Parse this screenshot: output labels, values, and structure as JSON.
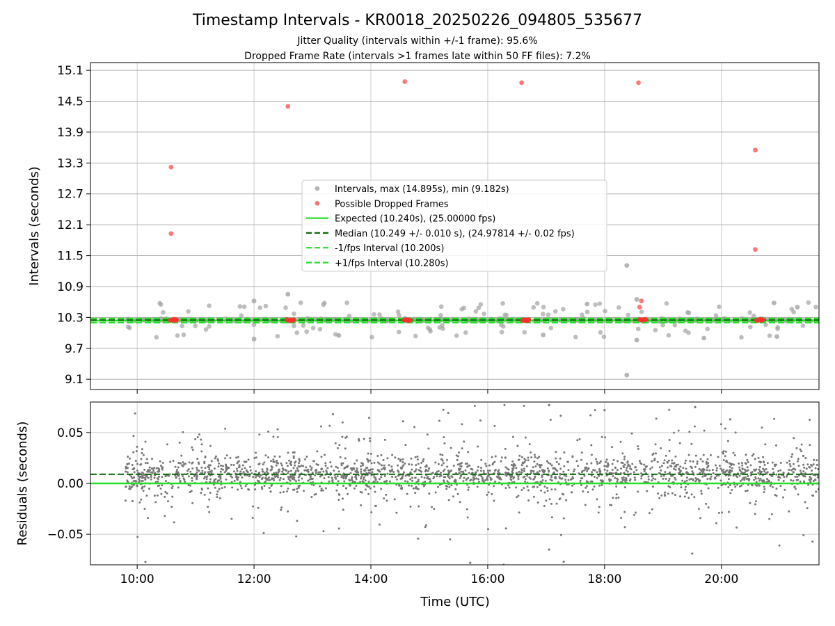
{
  "chart_data": {
    "title": "Timestamp Intervals - KR0018_20250226_094805_535677",
    "subtitles": [
      "Jitter Quality (intervals within +/-1 frame): 95.6%",
      "Dropped Frame Rate (intervals >1 frames late within 50 FF files): 7.2%"
    ],
    "xlabel": "Time (UTC)",
    "x_ticks": [
      "10:00",
      "12:00",
      "14:00",
      "16:00",
      "18:00",
      "20:00"
    ],
    "x_range_hours": [
      9.2,
      21.67
    ],
    "x_data_range_hours": [
      9.8,
      21.67
    ],
    "grid": true,
    "top_panel": {
      "type": "scatter",
      "ylabel": "Intervals (seconds)",
      "ylim": [
        8.9,
        15.25
      ],
      "y_ticks": [
        "9.1",
        "9.7",
        "10.3",
        "10.9",
        "11.5",
        "12.1",
        "12.7",
        "13.3",
        "13.9",
        "14.5",
        "15.1"
      ],
      "expected_interval": 10.24,
      "median_interval": 10.249,
      "minus_interval": 10.2,
      "plus_interval": 10.28,
      "legend_position": "center",
      "legend": [
        {
          "label": "Intervals, max (14.895s), min (9.182s)",
          "kind": "marker",
          "color": "#a3a3a3"
        },
        {
          "label": "Possible Dropped Frames",
          "kind": "marker",
          "color": "#f05050"
        },
        {
          "label": "Expected (10.240s), (25.00000 fps)",
          "kind": "solid",
          "color": "#22e022"
        },
        {
          "label": "Median (10.249 +/- 0.010 s), (24.97814 +/- 0.02 fps)",
          "kind": "dashed",
          "color": "#0c6b0c"
        },
        {
          "label": "-1/fps Interval (10.200s)",
          "kind": "dashed",
          "color": "#22e022"
        },
        {
          "label": "+1/fps Interval (10.280s)",
          "kind": "dashed",
          "color": "#22e022"
        }
      ],
      "dropped_frames": [
        {
          "x": 10.58,
          "y": 13.22
        },
        {
          "x": 10.58,
          "y": 11.93
        },
        {
          "x": 12.58,
          "y": 14.4
        },
        {
          "x": 14.58,
          "y": 14.88
        },
        {
          "x": 16.58,
          "y": 14.86
        },
        {
          "x": 18.58,
          "y": 14.86
        },
        {
          "x": 18.63,
          "y": 10.62
        },
        {
          "x": 18.6,
          "y": 10.5
        },
        {
          "x": 20.58,
          "y": 13.55
        },
        {
          "x": 20.58,
          "y": 11.62
        }
      ],
      "dropped_cluster_centers": [
        10.62,
        12.62,
        14.62,
        16.65,
        18.65,
        20.65
      ],
      "dropped_cluster_y": 10.249,
      "outliers": [
        {
          "x": 18.38,
          "y": 11.31
        },
        {
          "x": 18.38,
          "y": 9.18
        },
        {
          "x": 12.58,
          "y": 10.75
        },
        {
          "x": 12.0,
          "y": 10.62
        },
        {
          "x": 18.55,
          "y": 10.65
        },
        {
          "x": 12.0,
          "y": 9.88
        },
        {
          "x": 18.55,
          "y": 9.86
        },
        {
          "x": 19.7,
          "y": 9.9
        },
        {
          "x": 13.45,
          "y": 9.95
        },
        {
          "x": 16.95,
          "y": 9.96
        },
        {
          "x": 17.7,
          "y": 10.56
        },
        {
          "x": 20.9,
          "y": 10.58
        },
        {
          "x": 21.3,
          "y": 10.5
        },
        {
          "x": 20.95,
          "y": 9.93
        }
      ]
    },
    "bottom_panel": {
      "type": "scatter",
      "ylabel": "Residuals (seconds)",
      "ylim": [
        -0.08,
        0.08
      ],
      "y_ticks": [
        "0.05",
        "0.00",
        "−0.05"
      ],
      "y_tick_values": [
        0.05,
        0.0,
        -0.05
      ],
      "expected_residual": 0.0,
      "median_residual": 0.009,
      "residual_spread": 0.015,
      "residual_extremes": [
        {
          "x": 17.05,
          "y": 0.077
        },
        {
          "x": 19.55,
          "y": 0.075
        },
        {
          "x": 18.0,
          "y": 0.072
        },
        {
          "x": 13.35,
          "y": 0.068
        },
        {
          "x": 15.7,
          "y": -0.078
        },
        {
          "x": 17.3,
          "y": -0.077
        },
        {
          "x": 19.5,
          "y": -0.069
        },
        {
          "x": 17.05,
          "y": -0.065
        },
        {
          "x": 20.15,
          "y": 0.063
        },
        {
          "x": 14.55,
          "y": 0.061
        }
      ]
    }
  }
}
